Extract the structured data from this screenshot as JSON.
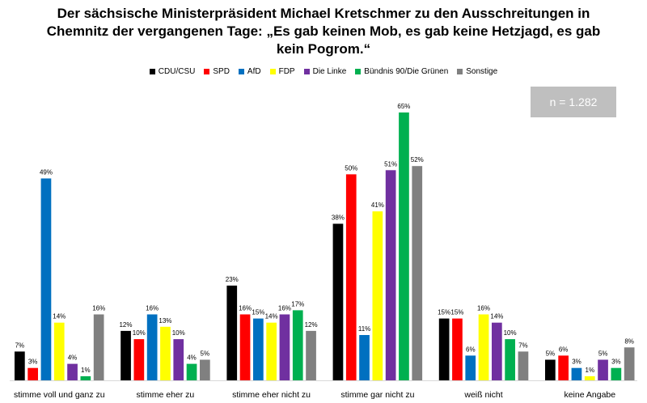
{
  "title_lines": [
    "Der sächsische Ministerpräsident Michael Kretschmer zu den Ausschreitungen in",
    "Chemnitz der vergangenen Tage: „Es gab keinen Mob, es gab keine Hetzjagd, es gab",
    "kein Pogrom.“"
  ],
  "sample_size": "n = 1.282",
  "colors": {
    "CDU/CSU": "#000000",
    "SPD": "#ff0000",
    "AfD": "#0070c0",
    "FDP": "#ffff00",
    "Die Linke": "#7030a0",
    "Bündnis 90/Die Grünen": "#00b050",
    "Sonstige": "#808080"
  },
  "chart_data": {
    "type": "bar",
    "categories": [
      "stimme voll und ganz zu",
      "stimme eher zu",
      "stimme eher nicht zu",
      "stimme gar nicht zu",
      "weiß nicht",
      "keine Angabe"
    ],
    "series": [
      {
        "name": "CDU/CSU",
        "values": [
          7,
          12,
          23,
          38,
          15,
          5
        ]
      },
      {
        "name": "SPD",
        "values": [
          3,
          10,
          16,
          50,
          15,
          6
        ]
      },
      {
        "name": "AfD",
        "values": [
          49,
          16,
          15,
          11,
          6,
          3
        ]
      },
      {
        "name": "FDP",
        "values": [
          14,
          13,
          14,
          41,
          16,
          1
        ]
      },
      {
        "name": "Die Linke",
        "values": [
          4,
          10,
          16,
          51,
          14,
          5
        ]
      },
      {
        "name": "Bündnis 90/Die Grünen",
        "values": [
          1,
          4,
          17,
          65,
          10,
          3
        ]
      },
      {
        "name": "Sonstige",
        "values": [
          16,
          5,
          12,
          52,
          7,
          8
        ]
      }
    ],
    "value_suffix": "%",
    "ylim": [
      0,
      65
    ],
    "legend_position": "top",
    "grid": false
  }
}
